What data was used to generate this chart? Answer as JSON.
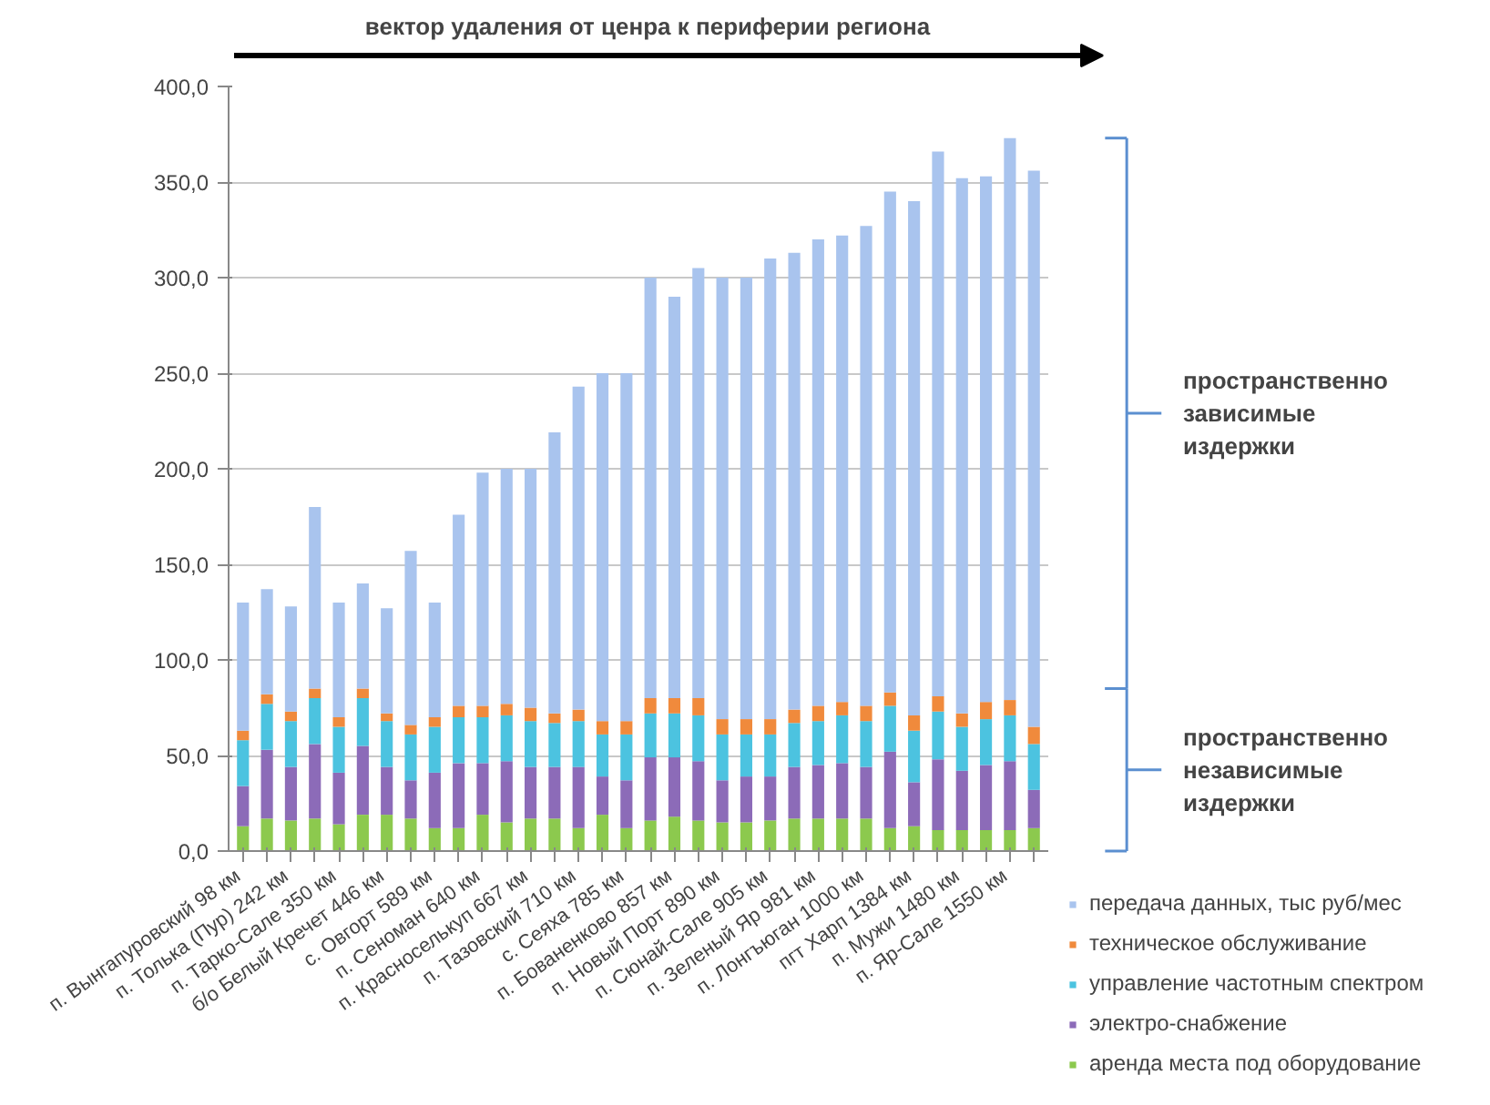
{
  "chart_data": {
    "type": "bar",
    "stacked": true,
    "title": "вектор удаления от ценра к периферии региона",
    "categories": [
      "п. Вынгапуровский  98 км",
      null,
      "п. Толька (Пур)  242 км",
      null,
      "п. Тарко-Сале  350 км",
      null,
      "б/о Белый Кречет  446 км",
      null,
      "с. Овгорт  589 км",
      null,
      "п. Сеноман  640 км",
      null,
      "п. Красноселькуп  667 км",
      null,
      "п. Тазовский  710 км",
      null,
      "с. Сеяха  785 км",
      null,
      "п. Бованенково  857 км",
      null,
      "п. Новый Порт  890 км",
      null,
      "п. Сюнай-Сале  905 км",
      null,
      "п. Зеленый Яр  981 км",
      null,
      "п. Лонгъюган  1000 км",
      null,
      "пгт Харп  1384 км",
      null,
      "п. Мужи  1480 км",
      null,
      "п. Яр-Сале  1550 км",
      null
    ],
    "series": [
      {
        "name": "аренда места под оборудование",
        "color": "#8cc94e",
        "values": [
          13,
          17,
          16,
          17,
          14,
          19,
          19,
          17,
          12,
          12,
          19,
          15,
          17,
          17,
          12,
          19,
          12,
          16,
          18,
          16,
          15,
          15,
          16,
          17,
          17,
          17,
          17,
          12,
          13,
          11,
          11,
          11,
          11,
          12
        ]
      },
      {
        "name": "электро-снабжение",
        "color": "#8c6bb8",
        "values": [
          21,
          36,
          28,
          39,
          27,
          36,
          25,
          20,
          29,
          34,
          27,
          32,
          27,
          27,
          32,
          20,
          25,
          33,
          31,
          31,
          22,
          24,
          23,
          27,
          28,
          29,
          27,
          40,
          23,
          37,
          31,
          34,
          36,
          20
        ]
      },
      {
        "name": "управление частотным спектром",
        "color": "#4cc3e0",
        "values": [
          24,
          24,
          24,
          24,
          24,
          25,
          24,
          24,
          24,
          24,
          24,
          24,
          24,
          23,
          24,
          22,
          24,
          23,
          23,
          24,
          24,
          22,
          22,
          23,
          23,
          25,
          24,
          24,
          27,
          25,
          23,
          24,
          24,
          24
        ]
      },
      {
        "name": "техническое обслуживание",
        "color": "#f08a3c",
        "values": [
          5,
          5,
          5,
          5,
          5,
          5,
          4,
          5,
          5,
          6,
          6,
          6,
          7,
          5,
          6,
          7,
          7,
          8,
          8,
          9,
          8,
          8,
          8,
          7,
          8,
          7,
          8,
          7,
          8,
          8,
          7,
          9,
          8,
          9
        ]
      },
      {
        "name": "передача данных, тыс руб/мес",
        "color": "#a9c4ee",
        "values": [
          67,
          55,
          55,
          95,
          60,
          55,
          55,
          91,
          60,
          100,
          122,
          123,
          125,
          147,
          169,
          182,
          182,
          220,
          210,
          225,
          231,
          231,
          241,
          239,
          244,
          244,
          251,
          262,
          269,
          285,
          280,
          275,
          294,
          291
        ]
      }
    ],
    "ylim": [
      0,
      400
    ],
    "yticks": [
      {
        "value": 0,
        "label": "0,0"
      },
      {
        "value": 50,
        "label": "50,0"
      },
      {
        "value": 100,
        "label": "100,0"
      },
      {
        "value": 150,
        "label": "150,0"
      },
      {
        "value": 200,
        "label": "200,0"
      },
      {
        "value": 250,
        "label": "250,0"
      },
      {
        "value": 300,
        "label": "300,0"
      },
      {
        "value": 350,
        "label": "350,0"
      },
      {
        "value": 400,
        "label": "400,0"
      }
    ],
    "grid": "y",
    "legend": "bottom right",
    "annotations": [
      "пространственно\nзависимые\nиздержки",
      "пространственно\nнезависимые\nиздержки"
    ]
  }
}
